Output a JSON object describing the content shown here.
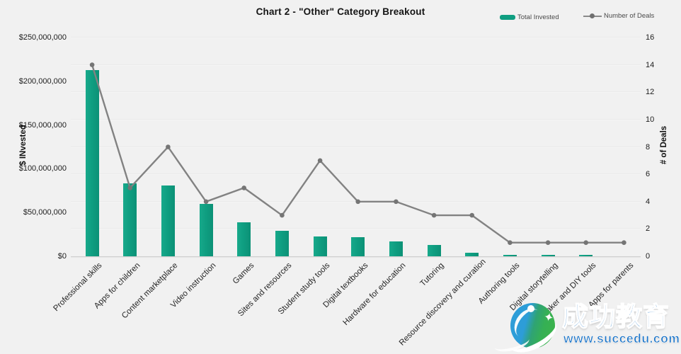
{
  "title": "Chart 2 - \"Other\" Category Breakout",
  "legend": {
    "total_invested": "Total Invested",
    "number_of_deals": "Number of Deals"
  },
  "axes": {
    "left_title": "$ INvested",
    "right_title": "# of Deals",
    "left_ticks": [
      "$0",
      "$50,000,000",
      "$100,000,000",
      "$150,000,000",
      "$200,000,000",
      "$250,000,000"
    ],
    "right_ticks": [
      "0",
      "2",
      "4",
      "6",
      "8",
      "10",
      "12",
      "14",
      "16"
    ]
  },
  "chart_data": {
    "type": "bar+line combo",
    "title": "Chart 2 - \"Other\" Category Breakout",
    "categories": [
      "Professional skills",
      "Apps for children",
      "Content marketplace",
      "Video instruction",
      "Games",
      "Sites and resources",
      "Student study tools",
      "Digital textbooks",
      "Hardware for education",
      "Tutoring",
      "Resource discovery and curation",
      "Authoring tools",
      "Digital storytelling",
      "Maker and DIY tools",
      "Apps for parents"
    ],
    "series": [
      {
        "name": "Total Invested",
        "type": "bar",
        "axis": "left",
        "color": "#0f9e81",
        "values": [
          213000000,
          83000000,
          81000000,
          60000000,
          39000000,
          29000000,
          23000000,
          22000000,
          17000000,
          13000000,
          4000000,
          1500000,
          1500000,
          1500000,
          0
        ]
      },
      {
        "name": "Number of Deals",
        "type": "line",
        "axis": "right",
        "color": "#828282",
        "marker_color": "#757575",
        "values": [
          14,
          5,
          8,
          4,
          5,
          3,
          7,
          4,
          4,
          3,
          3,
          1,
          1,
          1,
          1
        ]
      }
    ],
    "ylabel_left": "$ INvested",
    "ylabel_right": "# of Deals",
    "ylim_left": [
      0,
      250000000
    ],
    "ylim_right": [
      0,
      16
    ],
    "grid": "horizontal gridlines every 2 deals",
    "legend_position": "top-right",
    "background": "#f1f1f1"
  },
  "watermark": {
    "brand_text": "成功教育",
    "site_text": "www.succedu.com",
    "brand_color": "#1b74c8",
    "logo": "succedu-logo",
    "star_glyph": "✦"
  }
}
